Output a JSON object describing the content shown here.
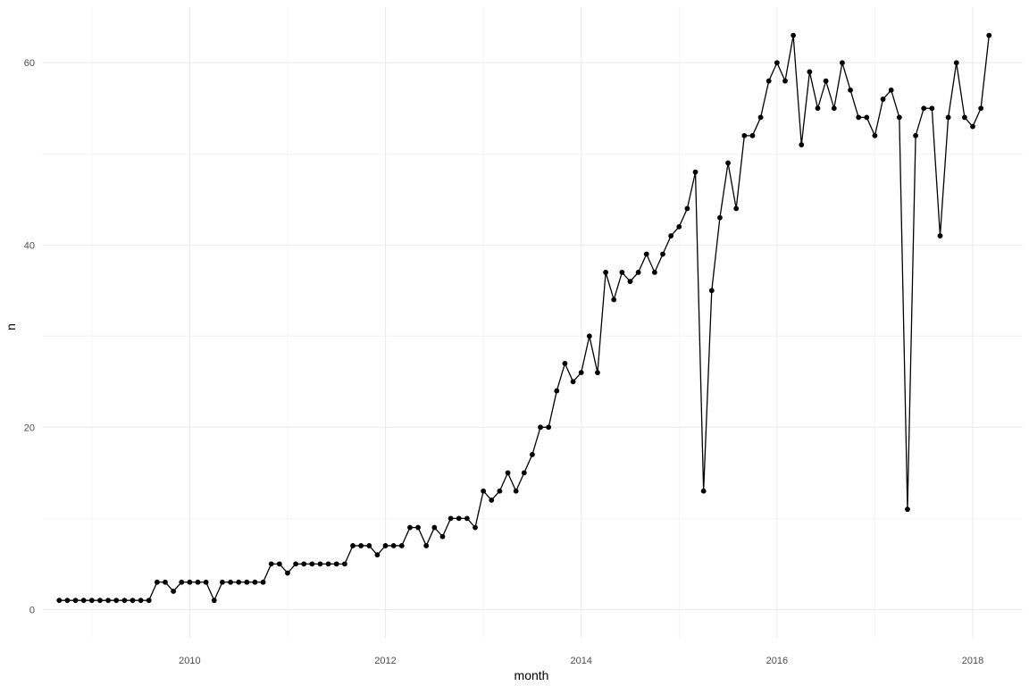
{
  "chart_data": {
    "type": "line",
    "xlabel": "month",
    "ylabel": "n",
    "x_ticks": [
      "2010",
      "2012",
      "2014",
      "2016",
      "2018"
    ],
    "y_ticks": [
      "0",
      "20",
      "40",
      "60"
    ],
    "xlim": [
      "2008-06-28",
      "2018-07-05"
    ],
    "ylim": [
      -3.1,
      66.1
    ],
    "grid": true,
    "legend": "none",
    "colors": {
      "line": "#000000",
      "point": "#000000",
      "grid_major": "#ebebeb",
      "grid_minor": "#f4f4f4"
    },
    "series": [
      {
        "x": [
          "2008-09",
          "2008-10",
          "2008-11",
          "2008-12",
          "2009-01",
          "2009-02",
          "2009-03",
          "2009-04",
          "2009-05",
          "2009-06",
          "2009-07",
          "2009-08",
          "2009-09",
          "2009-10",
          "2009-11",
          "2009-12",
          "2010-01",
          "2010-02",
          "2010-03",
          "2010-04",
          "2010-05",
          "2010-06",
          "2010-07",
          "2010-08",
          "2010-09",
          "2010-10",
          "2010-11",
          "2010-12",
          "2011-01",
          "2011-02",
          "2011-03",
          "2011-04",
          "2011-05",
          "2011-06",
          "2011-07",
          "2011-08",
          "2011-09",
          "2011-10",
          "2011-11",
          "2011-12",
          "2012-01",
          "2012-02",
          "2012-03",
          "2012-04",
          "2012-05",
          "2012-06",
          "2012-07",
          "2012-08",
          "2012-09",
          "2012-10",
          "2012-11",
          "2012-12",
          "2013-01",
          "2013-02",
          "2013-03",
          "2013-04",
          "2013-05",
          "2013-06",
          "2013-07",
          "2013-08",
          "2013-09",
          "2013-10",
          "2013-11",
          "2013-12",
          "2014-01",
          "2014-02",
          "2014-03",
          "2014-04",
          "2014-05",
          "2014-06",
          "2014-07",
          "2014-08",
          "2014-09",
          "2014-10",
          "2014-11",
          "2014-12",
          "2015-01",
          "2015-02",
          "2015-03",
          "2015-04",
          "2015-05",
          "2015-06",
          "2015-07",
          "2015-08",
          "2015-09",
          "2015-10",
          "2015-11",
          "2015-12",
          "2016-01",
          "2016-02",
          "2016-03",
          "2016-04",
          "2016-05",
          "2016-06",
          "2016-07",
          "2016-08",
          "2016-09",
          "2016-10",
          "2016-11",
          "2016-12",
          "2017-01",
          "2017-02",
          "2017-03",
          "2017-04",
          "2017-05",
          "2017-06",
          "2017-07",
          "2017-08",
          "2017-09",
          "2017-10",
          "2017-11",
          "2017-12",
          "2018-01",
          "2018-02",
          "2018-03"
        ],
        "y": [
          1,
          1,
          1,
          1,
          1,
          1,
          1,
          1,
          1,
          1,
          1,
          1,
          3,
          3,
          2,
          3,
          3,
          3,
          3,
          1,
          3,
          3,
          3,
          3,
          3,
          3,
          5,
          5,
          4,
          5,
          5,
          5,
          5,
          5,
          5,
          5,
          7,
          7,
          7,
          6,
          7,
          7,
          7,
          9,
          9,
          7,
          9,
          8,
          10,
          10,
          10,
          9,
          13,
          12,
          13,
          15,
          13,
          15,
          17,
          20,
          20,
          24,
          27,
          25,
          26,
          30,
          26,
          37,
          34,
          37,
          36,
          37,
          39,
          37,
          39,
          41,
          42,
          44,
          48,
          13,
          35,
          43,
          49,
          44,
          52,
          52,
          54,
          58,
          60,
          58,
          63,
          51,
          59,
          55,
          58,
          55,
          60,
          57,
          54,
          54,
          52,
          56,
          57,
          54,
          11,
          52,
          55,
          55,
          41,
          54,
          60,
          54,
          53,
          55,
          63
        ]
      }
    ]
  }
}
